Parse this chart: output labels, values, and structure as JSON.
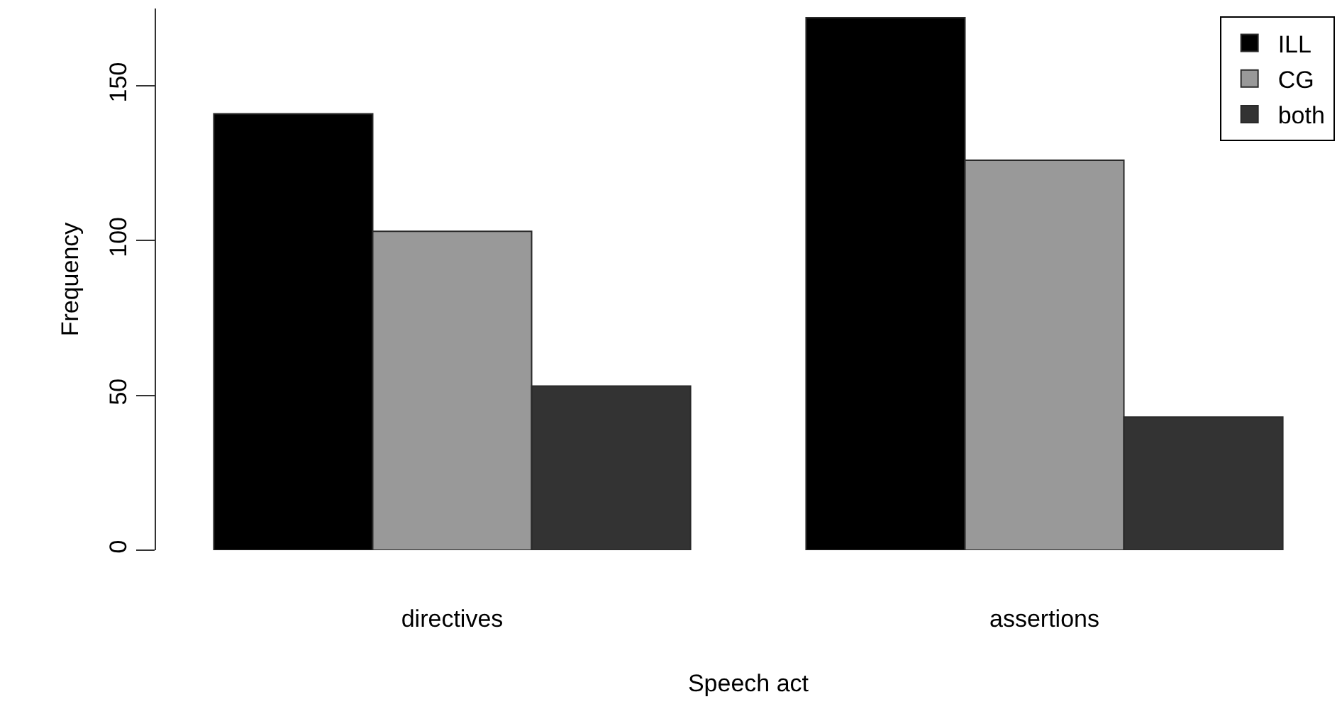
{
  "chart_data": {
    "type": "bar",
    "xlabel": "Speech act",
    "ylabel": "Frequency",
    "categories": [
      "directives",
      "assertions"
    ],
    "series": [
      {
        "name": "ILL",
        "color": "#000000",
        "values": [
          141,
          172
        ]
      },
      {
        "name": "CG",
        "color": "#999999",
        "values": [
          103,
          126
        ]
      },
      {
        "name": "both",
        "color": "#333333",
        "values": [
          53,
          43
        ]
      }
    ],
    "ylim": [
      0,
      175
    ],
    "yticks": [
      0,
      50,
      100,
      150
    ],
    "legend": "top right"
  }
}
